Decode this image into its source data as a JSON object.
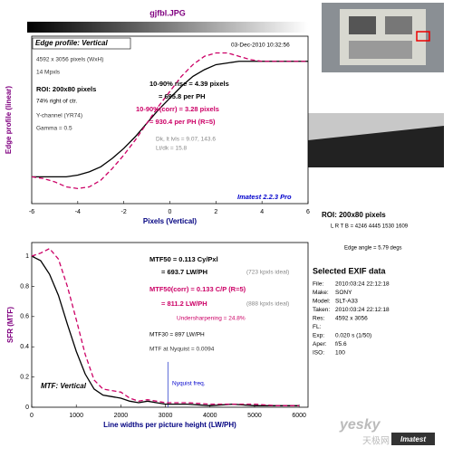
{
  "file_title": "gjfbl.JPG",
  "chart_data": [
    {
      "type": "line",
      "title": "Edge profile: Vertical",
      "xlabel": "Pixels (Vertical)",
      "ylabel": "Edge profile (linear)",
      "x": [
        -6,
        -5.5,
        -5,
        -4.5,
        -4,
        -3.5,
        -3,
        -2.5,
        -2,
        -1.5,
        -1,
        -0.5,
        0,
        0.5,
        1,
        1.5,
        2,
        2.5,
        3,
        3.5,
        4,
        4.5,
        5,
        5.5,
        6
      ],
      "series": [
        {
          "color": "#000000",
          "dashed": false,
          "values": [
            0.16,
            0.16,
            0.16,
            0.16,
            0.17,
            0.19,
            0.22,
            0.27,
            0.33,
            0.4,
            0.48,
            0.56,
            0.63,
            0.7,
            0.76,
            0.8,
            0.83,
            0.84,
            0.85,
            0.85,
            0.85,
            0.85,
            0.85,
            0.85,
            0.85
          ]
        },
        {
          "color": "#cc0066",
          "dashed": true,
          "values": [
            0.16,
            0.15,
            0.13,
            0.1,
            0.09,
            0.1,
            0.14,
            0.21,
            0.29,
            0.38,
            0.48,
            0.58,
            0.67,
            0.76,
            0.83,
            0.88,
            0.9,
            0.9,
            0.88,
            0.86,
            0.85,
            0.85,
            0.85,
            0.85,
            0.85
          ]
        }
      ],
      "xlim": [
        -6,
        6
      ],
      "xticks": [
        -6,
        -4,
        -2,
        0,
        2,
        4,
        6
      ],
      "ylim": [
        0,
        1
      ],
      "annotations": [
        {
          "text": "03-Dec-2010 10:32:56",
          "color": "#000000"
        },
        {
          "text": "4592 x 3056 pixels (WxH)",
          "color": "#333333"
        },
        {
          "text": "14 Mpxls",
          "color": "#333333"
        },
        {
          "text": "ROI: 200x80 pixels",
          "color": "#000000",
          "bold": true
        },
        {
          "text": "74% right of ctr.",
          "color": "#000000"
        },
        {
          "text": "Y-channel (YR74)",
          "color": "#333333"
        },
        {
          "text": "Gamma = 0.5",
          "color": "#333333"
        },
        {
          "text": "10-90% rise = 4.39 pixels",
          "color": "#000000",
          "bold": true
        },
        {
          "text": "= 695.8 per PH",
          "color": "#000000",
          "bold": true
        },
        {
          "text": "10-90%(corr) = 3.28 pixels",
          "color": "#cc0066",
          "bold": true
        },
        {
          "text": "= 930.4 per PH  (R=5)",
          "color": "#cc0066",
          "bold": true
        },
        {
          "text": "Dk, lt lvls = 9.07, 143.6",
          "color": "#888888"
        },
        {
          "text": "Lt/dk = 15.8",
          "color": "#888888"
        },
        {
          "text": "Imatest 2.2.3 Pro",
          "color": "#0000cc",
          "bold": true,
          "italic": true
        }
      ]
    },
    {
      "type": "line",
      "title": "MTF: Vertical",
      "xlabel": "Line widths per picture height (LW/PH)",
      "ylabel": "SFR (MTF)",
      "x": [
        0,
        200,
        400,
        600,
        800,
        1000,
        1200,
        1400,
        1600,
        1800,
        2000,
        2200,
        2400,
        2600,
        2800,
        3000,
        3500,
        4000,
        4500,
        5000,
        5500,
        6000
      ],
      "series": [
        {
          "color": "#000000",
          "dashed": false,
          "values": [
            1,
            0.97,
            0.88,
            0.74,
            0.55,
            0.37,
            0.22,
            0.12,
            0.08,
            0.07,
            0.06,
            0.04,
            0.03,
            0.04,
            0.03,
            0.02,
            0.02,
            0.01,
            0.02,
            0.01,
            0.01,
            0.01
          ]
        },
        {
          "color": "#cc0066",
          "dashed": true,
          "values": [
            1,
            1.02,
            1.05,
            0.98,
            0.8,
            0.58,
            0.35,
            0.18,
            0.12,
            0.11,
            0.1,
            0.06,
            0.04,
            0.05,
            0.04,
            0.03,
            0.03,
            0.02,
            0.02,
            0.02,
            0.01,
            0.01
          ]
        }
      ],
      "xlim": [
        0,
        6200
      ],
      "xticks": [
        0,
        1000,
        2000,
        3000,
        4000,
        5000,
        6000
      ],
      "ylim": [
        0,
        1.09
      ],
      "yticks": [
        0,
        0.2,
        0.4,
        0.6,
        0.8,
        1
      ],
      "nyquist": 3056,
      "annotations": [
        {
          "text": "MTF50 = 0.113 Cy/Pxl",
          "color": "#000000",
          "bold": true
        },
        {
          "text": "= 693.7 LW/PH",
          "color": "#000000",
          "bold": true
        },
        {
          "text": "(723 kpxls ideal)",
          "color": "#888888"
        },
        {
          "text": "MTF50(corr) = 0.133 C/P  (R=5)",
          "color": "#cc0066",
          "bold": true
        },
        {
          "text": "= 811.2 LW/PH",
          "color": "#cc0066",
          "bold": true
        },
        {
          "text": "(888 kpxls ideal)",
          "color": "#888888"
        },
        {
          "text": "Undersharpening = 24.8%",
          "color": "#cc0066"
        },
        {
          "text": "MTF30 = 897 LW/PH",
          "color": "#000000"
        },
        {
          "text": "MTF at Nyquist = 0.0094",
          "color": "#333333"
        },
        {
          "text": "Nyquist freq.",
          "color": "#0000cc"
        }
      ]
    }
  ],
  "side": {
    "roi": "ROI: 200x80 pixels",
    "lrtb": "L R T B = 4246 4445 1530 1609",
    "edge_angle": "Edge angle = 5.79 degs",
    "exif_title": "Selected EXIF data",
    "exif": [
      {
        "label": "File:",
        "value": "2010:03:24 22:12:18"
      },
      {
        "label": "Make:",
        "value": "SONY"
      },
      {
        "label": "Model:",
        "value": "SLT-A33"
      },
      {
        "label": "Taken:",
        "value": "2010:03:24 22:12:18"
      },
      {
        "label": "Res:",
        "value": "4592 x 3056"
      },
      {
        "label": "FL:"
      },
      {
        "label": "Exp:",
        "value": "0.020 s (1/50)"
      },
      {
        "label": "Aper:",
        "value": "f/5.6"
      },
      {
        "label": "ISO:",
        "value": "100"
      }
    ]
  },
  "watermark": {
    "brand": "yesky",
    "cn": "天极网",
    "logo": "Imatest"
  }
}
